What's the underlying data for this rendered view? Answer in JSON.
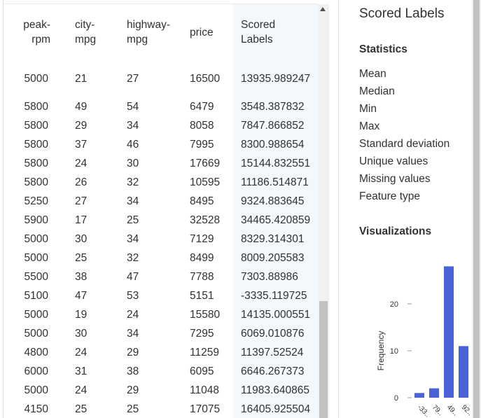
{
  "table": {
    "columns": [
      {
        "id": "peak_rpm",
        "label": "peak-\nrpm"
      },
      {
        "id": "city_mpg",
        "label": "city-\nmpg"
      },
      {
        "id": "highway_mpg",
        "label": "highway-\nmpg"
      },
      {
        "id": "price",
        "label": "price"
      },
      {
        "id": "scored_labels",
        "label": "Scored\nLabels"
      }
    ],
    "rows": [
      [
        "5000",
        "21",
        "27",
        "16500",
        "13935.989247"
      ],
      [
        "5800",
        "49",
        "54",
        "6479",
        "3548.387832"
      ],
      [
        "5800",
        "29",
        "34",
        "8058",
        "7847.866852"
      ],
      [
        "5800",
        "37",
        "46",
        "7995",
        "8300.988654"
      ],
      [
        "5800",
        "24",
        "30",
        "17669",
        "15144.832551"
      ],
      [
        "5800",
        "26",
        "32",
        "10595",
        "11186.514871"
      ],
      [
        "5250",
        "27",
        "34",
        "8495",
        "9324.883645"
      ],
      [
        "5900",
        "17",
        "25",
        "32528",
        "34465.420859"
      ],
      [
        "5000",
        "30",
        "34",
        "7129",
        "8329.314301"
      ],
      [
        "5000",
        "25",
        "32",
        "8499",
        "8009.205583"
      ],
      [
        "5500",
        "38",
        "47",
        "7788",
        "7303.88986"
      ],
      [
        "5100",
        "47",
        "53",
        "5151",
        "-3335.119725"
      ],
      [
        "5000",
        "19",
        "24",
        "15580",
        "14135.000551"
      ],
      [
        "5000",
        "30",
        "34",
        "7295",
        "6069.010876"
      ],
      [
        "4800",
        "24",
        "29",
        "11259",
        "11397.52524"
      ],
      [
        "6000",
        "31",
        "38",
        "6095",
        "6646.267373"
      ],
      [
        "5000",
        "24",
        "29",
        "11048",
        "11983.640865"
      ],
      [
        "4150",
        "25",
        "25",
        "17075",
        "16405.925504"
      ]
    ]
  },
  "stats_panel": {
    "title": "Scored Labels",
    "statistics_heading": "Statistics",
    "statistics": [
      "Mean",
      "Median",
      "Min",
      "Max",
      "Standard deviation",
      "Unique values",
      "Missing values",
      "Feature type"
    ],
    "visualizations_heading": "Visualizations"
  },
  "chart_data": {
    "type": "bar",
    "title": "",
    "xlabel": "",
    "ylabel": "Frequency",
    "yticks": [
      0,
      10,
      20
    ],
    "ylim": [
      0,
      30
    ],
    "bar_color": "#4a64d8",
    "categories": [
      "",
      "",
      "",
      ""
    ],
    "values": [
      1,
      2,
      28,
      11
    ],
    "xtick_labels": [
      "-33..",
      "79..",
      "49..",
      "92.."
    ]
  }
}
